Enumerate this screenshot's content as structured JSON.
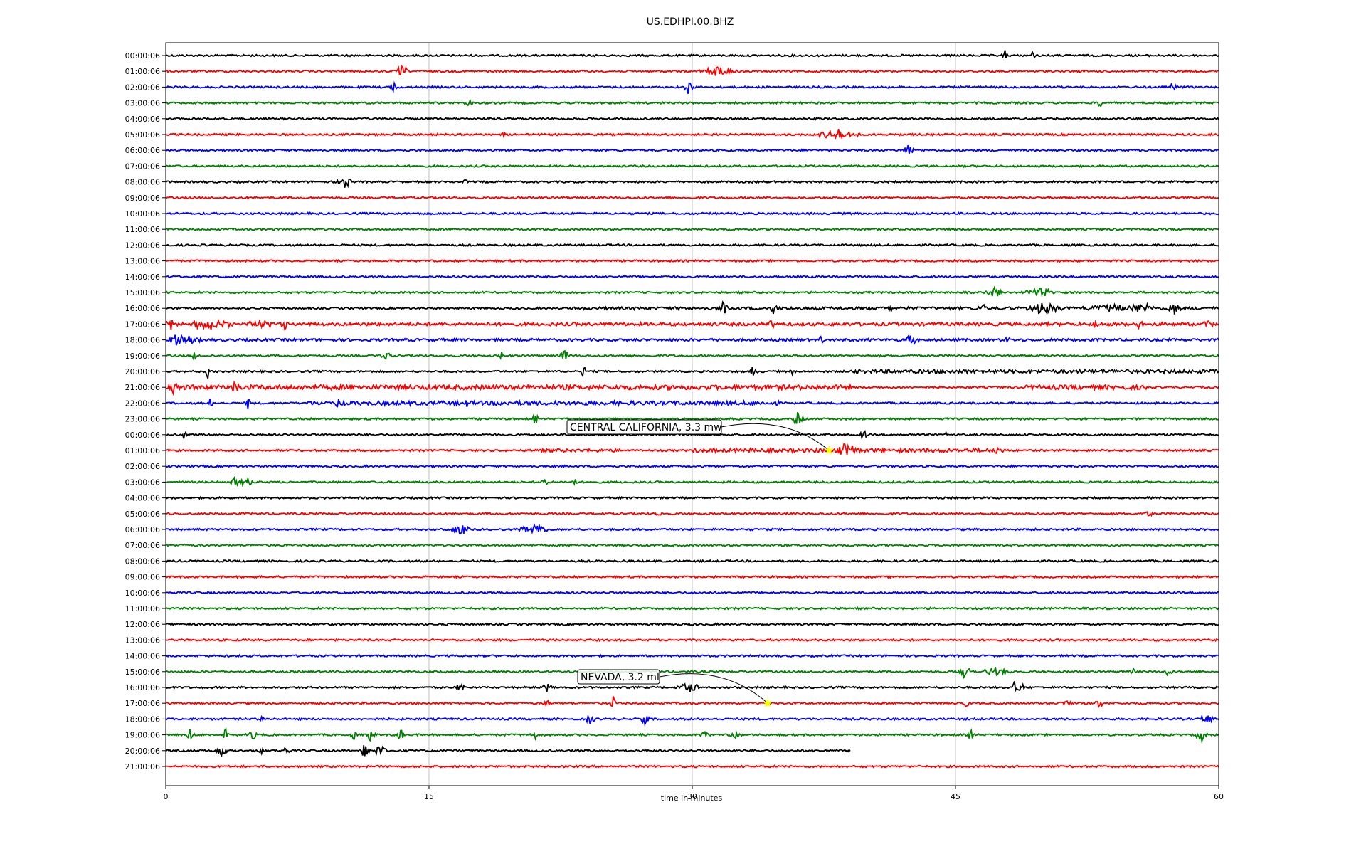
{
  "chart_data": {
    "type": "line",
    "title": "US.EDHPI.00.BHZ",
    "xlabel": "time in minutes",
    "ylabel": "",
    "xlim": [
      0,
      60
    ],
    "x_ticks": [
      0,
      15,
      30,
      45,
      60
    ],
    "grid": "vertical at x ticks",
    "trace_colors": [
      "#000000",
      "#ff0000",
      "#0000ff",
      "#008000"
    ],
    "row_labels": [
      "00:00:06",
      "01:00:06",
      "02:00:06",
      "03:00:06",
      "04:00:06",
      "05:00:06",
      "06:00:06",
      "07:00:06",
      "08:00:06",
      "09:00:06",
      "10:00:06",
      "11:00:06",
      "12:00:06",
      "13:00:06",
      "14:00:06",
      "15:00:06",
      "16:00:06",
      "17:00:06",
      "18:00:06",
      "19:00:06",
      "20:00:06",
      "21:00:06",
      "22:00:06",
      "23:00:06",
      "00:00:06",
      "01:00:06",
      "02:00:06",
      "03:00:06",
      "04:00:06",
      "05:00:06",
      "06:00:06",
      "07:00:06",
      "08:00:06",
      "09:00:06",
      "10:00:06",
      "11:00:06",
      "12:00:06",
      "13:00:06",
      "14:00:06",
      "15:00:06",
      "16:00:06",
      "17:00:06",
      "18:00:06",
      "19:00:06",
      "20:00:06",
      "21:00:06"
    ],
    "trace_end_minute": {
      "row": 44,
      "minute": 39
    },
    "events": [
      {
        "label": "CENTRAL CALIFORNIA, 3.3 mw",
        "row": 25,
        "minute": 37.8,
        "marker": "star",
        "marker_color": "#ffff00"
      },
      {
        "label": "NEVADA, 3.2 ml",
        "row": 41,
        "minute": 34.3,
        "marker": "star",
        "marker_color": "#ffff00"
      }
    ]
  }
}
